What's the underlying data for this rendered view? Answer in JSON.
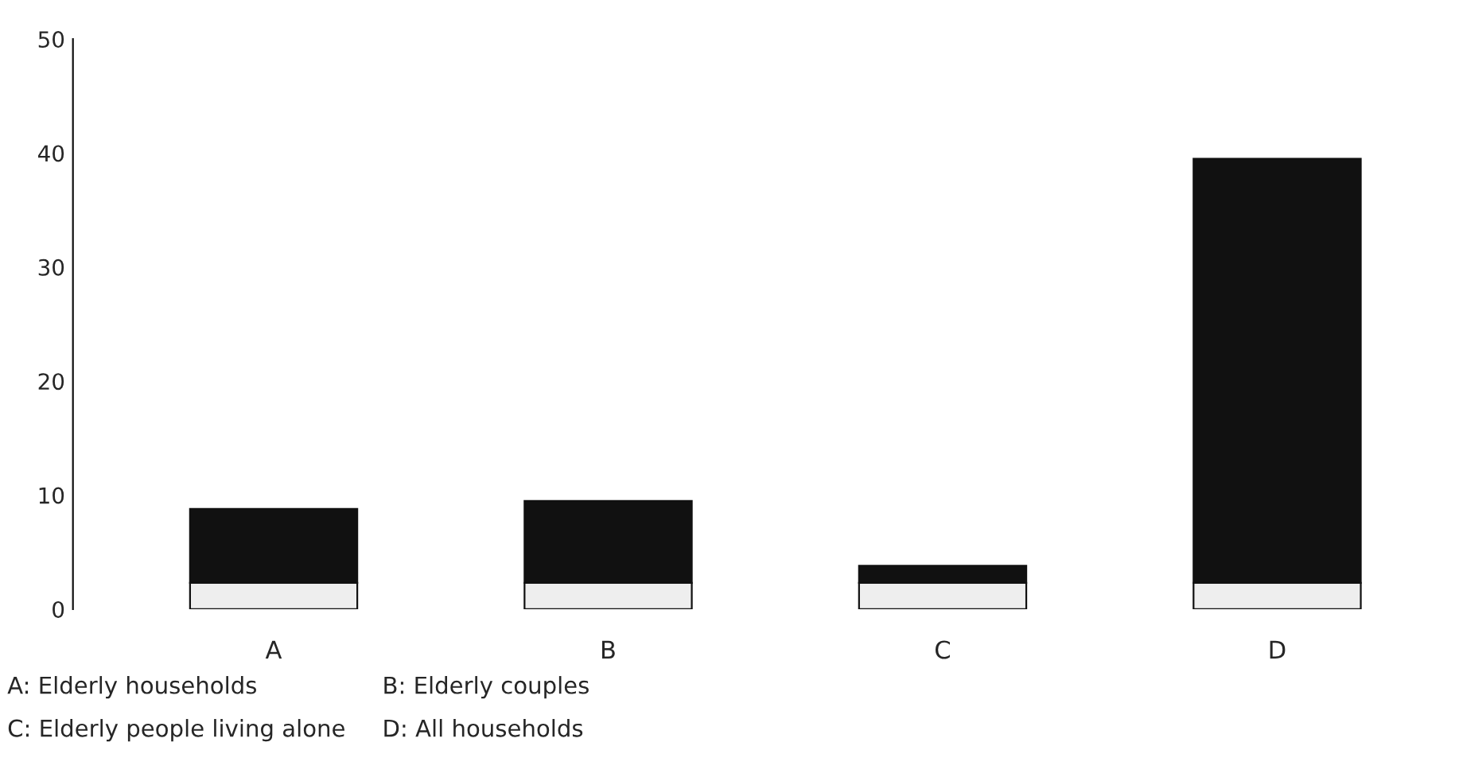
{
  "chart_data": {
    "type": "bar",
    "stacked": true,
    "categories": [
      "A",
      "B",
      "C",
      "D"
    ],
    "series": [
      {
        "color": "#eeeeee",
        "values": [
          2.3,
          2.3,
          2.3,
          2.3
        ]
      },
      {
        "color": "#111111",
        "values": [
          6.5,
          7.2,
          1.5,
          37.2
        ]
      }
    ],
    "ylim": [
      0,
      50
    ],
    "yticks": [
      0,
      10,
      20,
      30,
      40,
      50
    ],
    "grid": false,
    "annotations": [
      "A: Elderly households",
      "B: Elderly couples",
      "C: Elderly people living alone",
      "D: All households"
    ]
  }
}
